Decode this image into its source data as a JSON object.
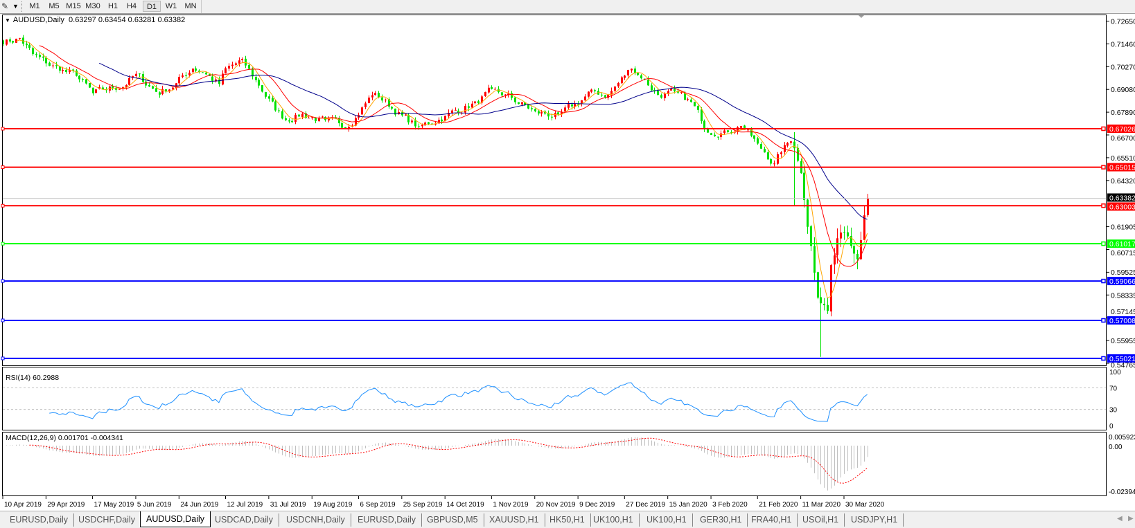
{
  "toolbar": {
    "timeframes": [
      "M1",
      "M5",
      "M15",
      "M30",
      "H1",
      "H4",
      "D1",
      "W1",
      "MN"
    ],
    "active": "D1"
  },
  "chart": {
    "symbol_title": "AUDUSD,Daily",
    "ohlc": "0.63297 0.63454 0.63281 0.63382"
  },
  "chart_data": {
    "type": "candlestick",
    "symbol": "AUDUSD",
    "timeframe": "Daily",
    "ylim": [
      0.54765,
      0.7265
    ],
    "y_ticks": [
      "0.72650",
      "0.71460",
      "0.70270",
      "0.69080",
      "0.67890",
      "0.66700",
      "0.65510",
      "0.64320",
      "0.61905",
      "0.60715",
      "0.59525",
      "0.58335",
      "0.57145",
      "0.55955",
      "0.54765"
    ],
    "x_tick_labels": [
      "10 Apr 2019",
      "29 Apr 2019",
      "17 May 2019",
      "5 Jun 2019",
      "24 Jun 2019",
      "12 Jul 2019",
      "31 Jul 2019",
      "19 Aug 2019",
      "6 Sep 2019",
      "25 Sep 2019",
      "14 Oct 2019",
      "1 Nov 2019",
      "20 Nov 2019",
      "9 Dec 2019",
      "27 Dec 2019",
      "15 Jan 2020",
      "3 Feb 2020",
      "21 Feb 2020",
      "11 Mar 2020",
      "30 Mar 2020"
    ],
    "close_path": [
      [
        "10 Apr 2019",
        0.715
      ],
      [
        "17 Apr 2019",
        0.7175
      ],
      [
        "23 Apr 2019",
        0.709
      ],
      [
        "29 Apr 2019",
        0.7045
      ],
      [
        "3 May 2019",
        0.701
      ],
      [
        "10 May 2019",
        0.698
      ],
      [
        "17 May 2019",
        0.6885
      ],
      [
        "23 May 2019",
        0.6905
      ],
      [
        "31 May 2019",
        0.6935
      ],
      [
        "5 Jun 2019",
        0.6985
      ],
      [
        "14 Jun 2019",
        0.6885
      ],
      [
        "21 Jun 2019",
        0.694
      ],
      [
        "28 Jun 2019",
        0.702
      ],
      [
        "3 Jul 2019",
        0.7
      ],
      [
        "10 Jul 2019",
        0.6935
      ],
      [
        "12 Jul 2019",
        0.7015
      ],
      [
        "19 Jul 2019",
        0.706
      ],
      [
        "26 Jul 2019",
        0.693
      ],
      [
        "2 Aug 2019",
        0.68
      ],
      [
        "7 Aug 2019",
        0.675
      ],
      [
        "14 Aug 2019",
        0.678
      ],
      [
        "23 Aug 2019",
        0.674
      ],
      [
        "3 Sep 2019",
        0.672
      ],
      [
        "12 Sep 2019",
        0.688
      ],
      [
        "16 Sep 2019",
        0.687
      ],
      [
        "25 Sep 2019",
        0.677
      ],
      [
        "2 Oct 2019",
        0.671
      ],
      [
        "14 Oct 2019",
        0.677
      ],
      [
        "25 Oct 2019",
        0.684
      ],
      [
        "1 Nov 2019",
        0.69
      ],
      [
        "7 Nov 2019",
        0.688
      ],
      [
        "20 Nov 2019",
        0.679
      ],
      [
        "29 Nov 2019",
        0.677
      ],
      [
        "6 Dec 2019",
        0.683
      ],
      [
        "13 Dec 2019",
        0.69
      ],
      [
        "20 Dec 2019",
        0.688
      ],
      [
        "31 Dec 2019",
        0.702
      ],
      [
        "3 Jan 2020",
        0.697
      ],
      [
        "10 Jan 2020",
        0.688
      ],
      [
        "17 Jan 2020",
        0.689
      ],
      [
        "24 Jan 2020",
        0.684
      ],
      [
        "31 Jan 2020",
        0.669
      ],
      [
        "7 Feb 2020",
        0.669
      ],
      [
        "14 Feb 2020",
        0.672
      ],
      [
        "21 Feb 2020",
        0.662
      ],
      [
        "25 Feb 2020",
        0.658
      ],
      [
        "28 Feb 2020",
        0.652
      ],
      [
        "3 Mar 2020",
        0.658
      ],
      [
        "6 Mar 2020",
        0.664
      ],
      [
        "9 Mar 2020",
        0.66
      ],
      [
        "11 Mar 2020",
        0.647
      ],
      [
        "12 Mar 2020",
        0.633
      ],
      [
        "13 Mar 2020",
        0.619
      ],
      [
        "16 Mar 2020",
        0.609
      ],
      [
        "17 Mar 2020",
        0.595
      ],
      [
        "18 Mar 2020",
        0.582
      ],
      [
        "19 Mar 2020",
        0.579
      ],
      [
        "20 Mar 2020",
        0.578
      ],
      [
        "23 Mar 2020",
        0.575
      ],
      [
        "24 Mar 2020",
        0.599
      ],
      [
        "25 Mar 2020",
        0.604
      ],
      [
        "26 Mar 2020",
        0.613
      ],
      [
        "27 Mar 2020",
        0.616
      ],
      [
        "30 Mar 2020",
        0.616
      ],
      [
        "31 Mar 2020",
        0.614
      ],
      [
        "1 Apr 2020",
        0.609
      ],
      [
        "2 Apr 2020",
        0.605
      ],
      [
        "3 Apr 2020",
        0.602
      ],
      [
        "6 Apr 2020",
        0.612
      ],
      [
        "7 Apr 2020",
        0.625
      ],
      [
        "8 Apr 2020",
        0.6338
      ]
    ],
    "wick_extremes": [
      {
        "date": "9 Mar 2020",
        "low": 0.63,
        "high": 0.6685
      },
      {
        "date": "19 Mar 2020",
        "low": 0.551
      }
    ],
    "last_price": "0.63382",
    "levels": [
      {
        "value": "0.67026",
        "color": "#ff0000"
      },
      {
        "value": "0.65015",
        "color": "#ff0000"
      },
      {
        "value": "0.63003",
        "color": "#ff0000"
      },
      {
        "value": "0.61017",
        "color": "#00ff00"
      },
      {
        "value": "0.59066",
        "color": "#0000ff"
      },
      {
        "value": "0.57008",
        "color": "#0000ff"
      },
      {
        "value": "0.55021",
        "color": "#0000ff"
      }
    ],
    "colors": {
      "up": "#ff0000",
      "down": "#00e000",
      "ma_fast": "#ffa500",
      "ma_mid": "#ff0000",
      "ma_slow": "#00008b",
      "rsi": "#1e90ff",
      "macd_hist": "#c0c0c0",
      "macd_signal": "#ff0000"
    },
    "rsi": {
      "label": "RSI(14) 60.2988",
      "ticks": [
        "100",
        "70",
        "30",
        "0"
      ],
      "levels": [
        70,
        30
      ]
    },
    "macd": {
      "label": "MACD(12,26,9) 0.001701 -0.004341",
      "ticks": [
        "0.005923",
        "0.00",
        "-0.02394"
      ]
    }
  },
  "tabs": [
    "EURUSD,Daily",
    "USDCHF,Daily",
    "AUDUSD,Daily",
    "USDCAD,Daily",
    "USDCNH,Daily",
    "EURUSD,Daily",
    "GBPUSD,M5",
    "XAUUSD,H1",
    "HK50,H1",
    "UK100,H1",
    "UK100,H1",
    "GER30,H1",
    "FRA40,H1",
    "USOil,H1",
    "USDJPY,H1"
  ],
  "active_tab": "AUDUSD,Daily"
}
